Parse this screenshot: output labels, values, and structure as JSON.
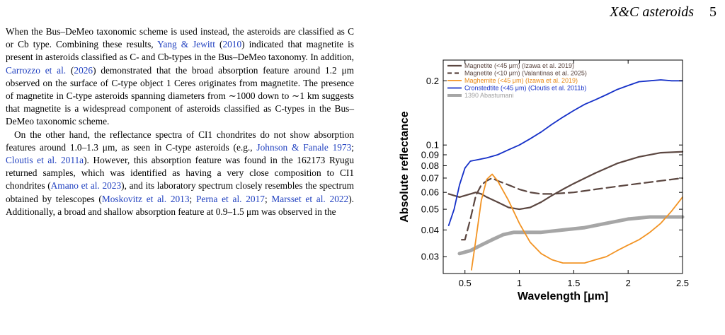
{
  "header": {
    "running_title": "X&C asteroids",
    "page_number": "5"
  },
  "paragraph1": {
    "parts": [
      {
        "t": "When the Bus–DeMeo taxonomic scheme is used instead, the asteroids are classified as C or Cb type. Combining these results, "
      },
      {
        "t": "Yang & Jewitt",
        "cite": true
      },
      {
        "t": " ("
      },
      {
        "t": "2010",
        "cite": true
      },
      {
        "t": ") indicated that magnetite is present in asteroids classified as C- and Cb-types in the Bus–DeMeo taxonomy. In addition, "
      },
      {
        "t": "Carrozzo et al.",
        "cite": true
      },
      {
        "t": " ("
      },
      {
        "t": "2026",
        "cite": true
      },
      {
        "t": ") demonstrated that the broad absorption feature around 1.2 μm observed on the surface of C-type object 1 Ceres originates from magnetite. The presence of magnetite in C-type asteroids spanning diameters from ∼1000 down to ∼1 km suggests that magnetite is a widespread component of asteroids classified as C-types in the Bus–DeMeo taxonomic scheme."
      }
    ]
  },
  "paragraph2": {
    "parts": [
      {
        "t": "On the other hand, the reflectance spectra of CI1 chondrites do not show absorption features around 1.0–1.3 μm, as seen in C-type asteroids (e.g., "
      },
      {
        "t": "Johnson & Fanale 1973",
        "cite": true
      },
      {
        "t": "; "
      },
      {
        "t": "Cloutis et al. 2011a",
        "cite": true
      },
      {
        "t": "). However, this absorption feature was found in the 162173 Ryugu returned samples, which was identified as having a very close composition to CI1 chondrites ("
      },
      {
        "t": "Amano et al. 2023",
        "cite": true
      },
      {
        "t": "), and its laboratory spectrum closely resembles the spectrum obtained by telescopes ("
      },
      {
        "t": "Moskovitz et al. 2013",
        "cite": true
      },
      {
        "t": "; "
      },
      {
        "t": "Perna et al. 2017",
        "cite": true
      },
      {
        "t": "; "
      },
      {
        "t": "Marsset et al. 2022",
        "cite": true
      },
      {
        "t": "). Additionally, a broad and shallow absorption feature at 0.9–1.5 μm was observed in the"
      }
    ]
  },
  "chart_data": {
    "type": "line",
    "xlabel": "Wavelength [μm]",
    "ylabel": "Absolute reflectance",
    "xlim": [
      0.3,
      2.5
    ],
    "ylim": [
      0.025,
      0.25
    ],
    "y_scale": "log",
    "x_ticks": [
      0.5,
      1,
      1.5,
      2,
      2.5
    ],
    "x_tick_labels": [
      "0.5",
      "1",
      "1.5",
      "2",
      "2.5"
    ],
    "y_ticks": [
      0.03,
      0.04,
      0.05,
      0.06,
      0.07,
      0.08,
      0.09,
      0.1,
      0.2
    ],
    "y_tick_labels": [
      "0.03",
      "0.04",
      "0.05",
      "0.06",
      "0.07",
      "0.08",
      "0.09",
      "0.1",
      "0.2"
    ],
    "legend_position": "top-left",
    "series": [
      {
        "name": "Magnetite (<45 μm) (Izawa et al. 2019)",
        "color": "#5b4640",
        "dash": "solid",
        "width": 2.2,
        "x": [
          0.35,
          0.45,
          0.55,
          0.6,
          0.65,
          0.7,
          0.8,
          0.9,
          1.0,
          1.1,
          1.2,
          1.3,
          1.4,
          1.5,
          1.7,
          1.9,
          2.1,
          2.3,
          2.5
        ],
        "y": [
          0.059,
          0.057,
          0.059,
          0.06,
          0.059,
          0.057,
          0.054,
          0.051,
          0.05,
          0.051,
          0.054,
          0.058,
          0.062,
          0.066,
          0.074,
          0.082,
          0.088,
          0.092,
          0.093
        ]
      },
      {
        "name": "Magnetite (<10 μm) (Valantinas et al. 2025)",
        "color": "#5b4640",
        "dash": "dashed",
        "width": 2.2,
        "x": [
          0.47,
          0.5,
          0.55,
          0.6,
          0.65,
          0.7,
          0.75,
          0.8,
          0.9,
          1.0,
          1.1,
          1.2,
          1.3,
          1.5,
          1.7,
          1.9,
          2.1,
          2.3,
          2.5
        ],
        "y": [
          0.036,
          0.036,
          0.045,
          0.058,
          0.065,
          0.068,
          0.07,
          0.068,
          0.065,
          0.062,
          0.06,
          0.059,
          0.059,
          0.06,
          0.062,
          0.064,
          0.066,
          0.068,
          0.07
        ]
      },
      {
        "name": "Maghemite (<45 μm) (Izawa et al. 2019)",
        "color": "#f29323",
        "dash": "solid",
        "width": 1.8,
        "x": [
          0.56,
          0.6,
          0.65,
          0.7,
          0.75,
          0.8,
          0.9,
          1.0,
          1.1,
          1.2,
          1.3,
          1.4,
          1.5,
          1.6,
          1.7,
          1.8,
          1.9,
          2.0,
          2.1,
          2.2,
          2.3,
          2.4,
          2.5
        ],
        "y": [
          0.026,
          0.036,
          0.055,
          0.069,
          0.073,
          0.068,
          0.055,
          0.043,
          0.035,
          0.031,
          0.029,
          0.028,
          0.028,
          0.028,
          0.029,
          0.03,
          0.032,
          0.034,
          0.036,
          0.039,
          0.043,
          0.049,
          0.057
        ]
      },
      {
        "name": "Cronstedtite (<45 μm) (Cloutis et al. 2011b)",
        "color": "#1530c8",
        "dash": "solid",
        "width": 1.8,
        "x": [
          0.35,
          0.4,
          0.45,
          0.5,
          0.55,
          0.6,
          0.7,
          0.8,
          0.9,
          1.0,
          1.1,
          1.2,
          1.3,
          1.4,
          1.5,
          1.6,
          1.7,
          1.8,
          1.9,
          2.0,
          2.1,
          2.2,
          2.3,
          2.4,
          2.5
        ],
        "y": [
          0.042,
          0.05,
          0.065,
          0.078,
          0.084,
          0.085,
          0.087,
          0.09,
          0.095,
          0.1,
          0.107,
          0.115,
          0.125,
          0.135,
          0.145,
          0.155,
          0.163,
          0.172,
          0.182,
          0.19,
          0.198,
          0.2,
          0.202,
          0.2,
          0.2
        ]
      },
      {
        "name": "1390 Abastumani",
        "color": "#a6a6a6",
        "dash": "solid",
        "width": 5,
        "x": [
          0.45,
          0.55,
          0.65,
          0.75,
          0.85,
          0.95,
          1.05,
          1.2,
          1.4,
          1.6,
          1.8,
          2.0,
          2.2,
          2.4,
          2.5
        ],
        "y": [
          0.031,
          0.032,
          0.034,
          0.036,
          0.038,
          0.039,
          0.039,
          0.039,
          0.04,
          0.041,
          0.043,
          0.045,
          0.046,
          0.046,
          0.046
        ]
      }
    ]
  }
}
